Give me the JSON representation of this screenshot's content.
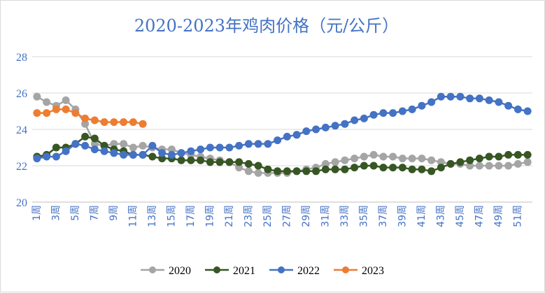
{
  "chart_data": {
    "type": "line",
    "title": "2020-2023年鸡肉价格（元/公斤）",
    "xlabel": "",
    "ylabel": "",
    "ylim": [
      20,
      28
    ],
    "yticks": [
      20,
      22,
      24,
      26,
      28
    ],
    "grid": true,
    "legend_position": "bottom",
    "x_tick_labels": [
      "1周",
      "3周",
      "5周",
      "7周",
      "9周",
      "11周",
      "13周",
      "15周",
      "17周",
      "19周",
      "21周",
      "23周",
      "25周",
      "27周",
      "29周",
      "31周",
      "33周",
      "35周",
      "37周",
      "39周",
      "41周",
      "43周",
      "45周",
      "47周",
      "49周",
      "51周"
    ],
    "week_count": 52,
    "series": [
      {
        "name": "2020",
        "color": "#a5a5a5",
        "values": [
          25.8,
          25.5,
          25.3,
          25.6,
          25.1,
          24.3,
          23.2,
          23.1,
          23.2,
          23.2,
          23.0,
          23.1,
          23.0,
          22.9,
          22.9,
          22.7,
          22.6,
          22.5,
          22.4,
          22.3,
          22.2,
          21.9,
          21.7,
          21.6,
          21.6,
          21.6,
          21.6,
          21.7,
          21.8,
          21.9,
          22.1,
          22.2,
          22.3,
          22.4,
          22.5,
          22.6,
          22.5,
          22.5,
          22.4,
          22.4,
          22.4,
          22.3,
          22.2,
          22.1,
          22.1,
          22.0,
          22.0,
          22.0,
          22.0,
          22.0,
          22.1,
          22.2
        ]
      },
      {
        "name": "2021",
        "color": "#375623",
        "values": [
          22.5,
          22.6,
          23.0,
          23.0,
          23.2,
          23.6,
          23.5,
          23.1,
          22.9,
          22.8,
          22.6,
          22.6,
          22.5,
          22.4,
          22.4,
          22.3,
          22.3,
          22.3,
          22.2,
          22.2,
          22.2,
          22.2,
          22.1,
          22.0,
          21.8,
          21.7,
          21.7,
          21.7,
          21.7,
          21.7,
          21.8,
          21.8,
          21.8,
          21.9,
          22.0,
          22.0,
          21.9,
          21.9,
          21.9,
          21.8,
          21.8,
          21.7,
          21.9,
          22.1,
          22.2,
          22.3,
          22.4,
          22.5,
          22.5,
          22.6,
          22.6,
          22.6
        ]
      },
      {
        "name": "2022",
        "color": "#4472c4",
        "values": [
          22.4,
          22.5,
          22.5,
          22.8,
          23.2,
          23.1,
          22.9,
          22.8,
          22.7,
          22.6,
          22.6,
          22.6,
          23.1,
          22.7,
          22.6,
          22.7,
          22.8,
          22.9,
          23.0,
          23.0,
          23.0,
          23.1,
          23.2,
          23.2,
          23.2,
          23.4,
          23.6,
          23.7,
          23.9,
          24.0,
          24.1,
          24.2,
          24.3,
          24.5,
          24.6,
          24.8,
          24.9,
          24.9,
          25.0,
          25.1,
          25.3,
          25.5,
          25.8,
          25.8,
          25.8,
          25.7,
          25.7,
          25.6,
          25.5,
          25.3,
          25.1,
          25.0
        ]
      },
      {
        "name": "2023",
        "color": "#ed7d31",
        "values": [
          24.9,
          24.9,
          25.1,
          25.1,
          24.9,
          24.6,
          24.5,
          24.4,
          24.4,
          24.4,
          24.4,
          24.3
        ]
      }
    ]
  }
}
